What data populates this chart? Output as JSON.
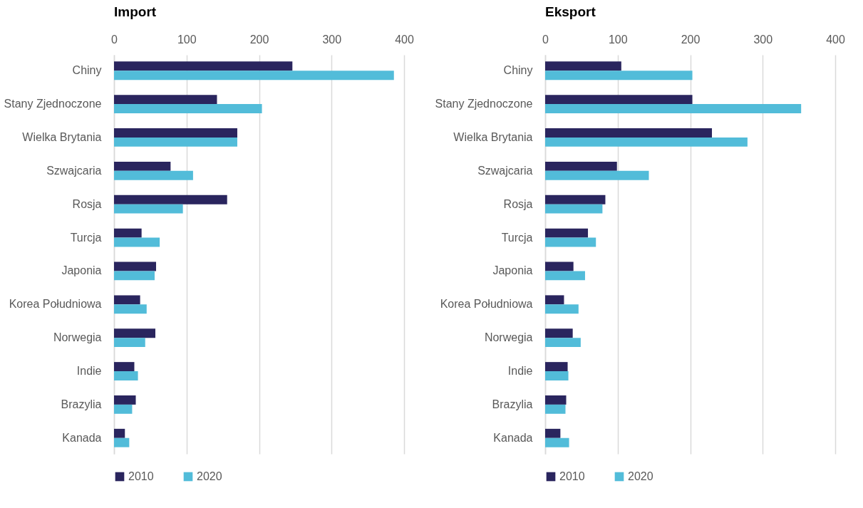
{
  "chart_data": [
    {
      "type": "bar",
      "orientation": "horizontal",
      "title": "Import",
      "categories": [
        "Chiny",
        "Stany Zjednoczone",
        "Wielka Brytania",
        "Szwajcaria",
        "Rosja",
        "Turcja",
        "Japonia",
        "Korea Południowa",
        "Norwegia",
        "Indie",
        "Brazylia",
        "Kanada"
      ],
      "series": [
        {
          "name": "2010",
          "color": "#2a255e",
          "values": [
            246,
            142,
            170,
            78,
            156,
            38,
            58,
            36,
            57,
            28,
            30,
            15
          ]
        },
        {
          "name": "2020",
          "color": "#52bcd9",
          "values": [
            386,
            204,
            170,
            109,
            95,
            63,
            56,
            45,
            43,
            33,
            25,
            21
          ]
        }
      ],
      "xlim": [
        0,
        400
      ],
      "xticks": [
        0,
        100,
        200,
        300,
        400
      ],
      "grid": "x",
      "legend": "bottom"
    },
    {
      "type": "bar",
      "orientation": "horizontal",
      "title": "Eksport",
      "categories": [
        "Chiny",
        "Stany Zjednoczone",
        "Wielka Brytania",
        "Szwajcaria",
        "Rosja",
        "Turcja",
        "Japonia",
        "Korea Południowa",
        "Norwegia",
        "Indie",
        "Brazylia",
        "Kanada"
      ],
      "series": [
        {
          "name": "2010",
          "color": "#2a255e",
          "values": [
            105,
            203,
            230,
            99,
            83,
            59,
            39,
            26,
            38,
            31,
            29,
            21
          ]
        },
        {
          "name": "2020",
          "color": "#52bcd9",
          "values": [
            203,
            353,
            279,
            143,
            79,
            70,
            55,
            46,
            49,
            32,
            28,
            33
          ]
        }
      ],
      "xlim": [
        0,
        400
      ],
      "xticks": [
        0,
        100,
        200,
        300,
        400
      ],
      "grid": "x",
      "legend": "bottom"
    }
  ]
}
